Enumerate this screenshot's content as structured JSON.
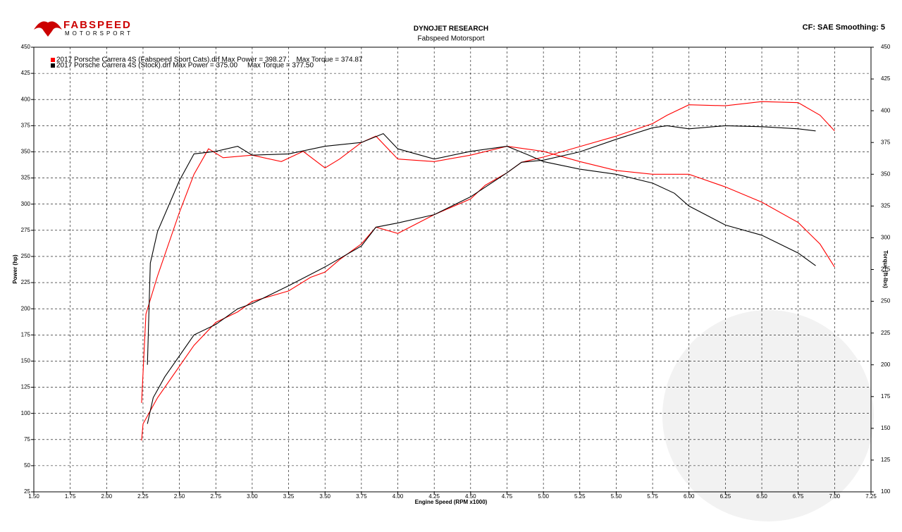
{
  "logo": {
    "name": "FABSPEED",
    "tagline": "MOTORSPORT"
  },
  "chart_data": {
    "type": "line",
    "title": "DYNOJET RESEARCH",
    "subtitle": "Fabspeed Motorsport",
    "note": "CF: SAE  Smoothing: 5",
    "xlabel": "Engine Speed (RPM x1000)",
    "ylabel": "Power (hp)",
    "y2label": "Torque (ft-lbs)",
    "grid": true,
    "legend": "top-left",
    "xlim": [
      1.5,
      7.25
    ],
    "xticks": [
      {
        "value": 1.5,
        "label": "1.50"
      },
      {
        "value": 1.75,
        "label": "1.75"
      },
      {
        "value": 2,
        "label": "2.00"
      },
      {
        "value": 2.25,
        "label": "2.25"
      },
      {
        "value": 2.5,
        "label": "2.50"
      },
      {
        "value": 2.75,
        "label": "2.75"
      },
      {
        "value": 3,
        "label": "3.00"
      },
      {
        "value": 3.25,
        "label": "3.25"
      },
      {
        "value": 3.5,
        "label": "3.50"
      },
      {
        "value": 3.75,
        "label": "3.75"
      },
      {
        "value": 4,
        "label": "4.00"
      },
      {
        "value": 4.25,
        "label": "4.25"
      },
      {
        "value": 4.5,
        "label": "4.50"
      },
      {
        "value": 4.75,
        "label": "4.75"
      },
      {
        "value": 5,
        "label": "5.00"
      },
      {
        "value": 5.25,
        "label": "5.25"
      },
      {
        "value": 5.5,
        "label": "5.50"
      },
      {
        "value": 5.75,
        "label": "5.75"
      },
      {
        "value": 6,
        "label": "6.00"
      },
      {
        "value": 6.25,
        "label": "6.25"
      },
      {
        "value": 6.5,
        "label": "6.50"
      },
      {
        "value": 6.75,
        "label": "6.75"
      },
      {
        "value": 7,
        "label": "7.00"
      },
      {
        "value": 7.25,
        "label": "7.25"
      }
    ],
    "ylim": [
      25,
      450
    ],
    "yticks": [
      25,
      50,
      75,
      100,
      125,
      150,
      175,
      200,
      225,
      250,
      275,
      300,
      325,
      350,
      375,
      400,
      425,
      450
    ],
    "y2lim": [
      100,
      450
    ],
    "y2ticks": [
      100,
      125,
      150,
      175,
      200,
      225,
      250,
      275,
      300,
      325,
      350,
      375,
      400,
      425,
      450
    ],
    "runs": [
      {
        "name": "2017 Porsche Carrera 4S (Fabspeed Sport Cats).drf Max Power = 398.27     Max Torque = 374.87",
        "color": "#ff0000",
        "power": {
          "x": [
            2.24,
            2.25,
            2.35,
            2.5,
            2.6,
            2.75,
            2.9,
            3.0,
            3.25,
            3.4,
            3.5,
            3.6,
            3.75,
            3.85,
            4.0,
            4.25,
            4.5,
            4.6,
            4.75,
            4.85,
            5.0,
            5.25,
            5.5,
            5.75,
            5.85,
            6.0,
            6.25,
            6.5,
            6.75,
            6.9,
            7.0
          ],
          "values": [
            74,
            90,
            115,
            145,
            165,
            187,
            197,
            207,
            217,
            230,
            235,
            247,
            262,
            278,
            272,
            290,
            305,
            318,
            330,
            340,
            345,
            355,
            365,
            377,
            385,
            395,
            394,
            398,
            397,
            385,
            370
          ]
        },
        "torque": {
          "x": [
            2.24,
            2.27,
            2.35,
            2.5,
            2.6,
            2.7,
            2.8,
            3.0,
            3.2,
            3.35,
            3.5,
            3.6,
            3.75,
            3.85,
            4.0,
            4.25,
            4.5,
            4.75,
            5.0,
            5.25,
            5.5,
            5.75,
            6.0,
            6.25,
            6.5,
            6.75,
            6.9,
            7.0
          ],
          "values": [
            170,
            240,
            270,
            320,
            350,
            370,
            363,
            365,
            360,
            368,
            355,
            362,
            375,
            380,
            362,
            360,
            365,
            372,
            368,
            360,
            353,
            350,
            350,
            340,
            328,
            312,
            295,
            277
          ]
        }
      },
      {
        "name": "2017 Porsche Carrera 4S (Stock).drf Max Power = 375.00     Max Torque = 377.50",
        "color": "#000000",
        "power": {
          "x": [
            2.28,
            2.32,
            2.4,
            2.5,
            2.6,
            2.75,
            2.9,
            3.0,
            3.25,
            3.5,
            3.75,
            3.85,
            4.0,
            4.25,
            4.5,
            4.75,
            4.85,
            5.0,
            5.25,
            5.5,
            5.75,
            5.85,
            6.0,
            6.25,
            6.5,
            6.75,
            6.87
          ],
          "values": [
            90,
            115,
            135,
            155,
            175,
            185,
            200,
            205,
            222,
            240,
            260,
            278,
            282,
            290,
            307,
            330,
            340,
            342,
            350,
            362,
            373,
            375,
            372,
            375,
            374,
            372,
            370
          ]
        },
        "torque": {
          "x": [
            2.28,
            2.3,
            2.35,
            2.5,
            2.6,
            2.75,
            2.9,
            3.0,
            3.25,
            3.5,
            3.75,
            3.9,
            4.0,
            4.25,
            4.5,
            4.75,
            4.9,
            5.0,
            5.25,
            5.5,
            5.75,
            5.9,
            6.0,
            6.25,
            6.5,
            6.75,
            6.87
          ],
          "values": [
            200,
            280,
            305,
            345,
            366,
            368,
            372,
            365,
            366,
            372,
            375,
            382,
            370,
            362,
            368,
            372,
            365,
            360,
            354,
            350,
            343,
            335,
            325,
            310,
            302,
            288,
            278
          ]
        }
      }
    ]
  }
}
